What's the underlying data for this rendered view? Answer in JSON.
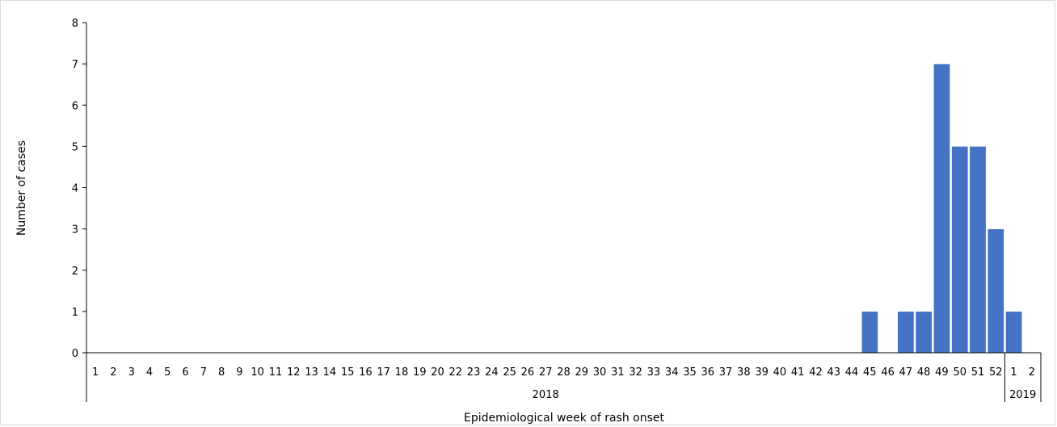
{
  "chart_data": {
    "type": "bar",
    "title": "",
    "xlabel": "Epidemiological week of rash onset",
    "ylabel": "Number  of cases",
    "ylim": [
      0,
      8
    ],
    "yticks": [
      0,
      1,
      2,
      3,
      4,
      5,
      6,
      7,
      8
    ],
    "grid": false,
    "bar_color": "#4472c4",
    "categories": [
      "1",
      "2",
      "3",
      "4",
      "5",
      "6",
      "7",
      "8",
      "9",
      "10",
      "11",
      "12",
      "13",
      "14",
      "15",
      "16",
      "17",
      "18",
      "19",
      "20",
      "22",
      "23",
      "24",
      "25",
      "26",
      "27",
      "28",
      "29",
      "30",
      "31",
      "32",
      "33",
      "34",
      "35",
      "36",
      "37",
      "38",
      "39",
      "40",
      "41",
      "42",
      "43",
      "44",
      "45",
      "46",
      "47",
      "48",
      "49",
      "50",
      "51",
      "52",
      "1",
      "2"
    ],
    "values": [
      0,
      0,
      0,
      0,
      0,
      0,
      0,
      0,
      0,
      0,
      0,
      0,
      0,
      0,
      0,
      0,
      0,
      0,
      0,
      0,
      0,
      0,
      0,
      0,
      0,
      0,
      0,
      0,
      0,
      0,
      0,
      0,
      0,
      0,
      0,
      0,
      0,
      0,
      0,
      0,
      0,
      0,
      0,
      1,
      0,
      1,
      1,
      7,
      5,
      5,
      3,
      1,
      0
    ],
    "year_groups": [
      {
        "label": "2018",
        "count": 51
      },
      {
        "label": "2019",
        "count": 2
      }
    ]
  }
}
